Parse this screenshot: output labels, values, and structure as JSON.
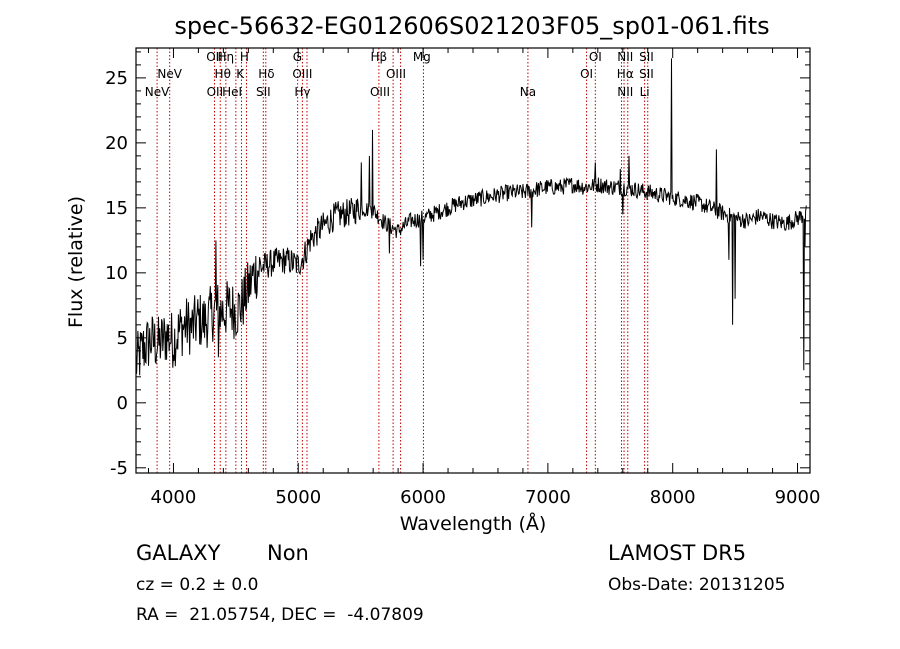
{
  "chart_data": {
    "type": "line",
    "title": "spec-56632-EG012606S021203F05_sp01-061.fits",
    "xlabel": "Wavelength (Å)",
    "ylabel": "Flux (relative)",
    "xlim": [
      3700,
      9100
    ],
    "ylim": [
      -5.4,
      27.3
    ],
    "xticks": [
      4000,
      5000,
      6000,
      7000,
      8000,
      9000
    ],
    "yticks": [
      -5,
      0,
      5,
      10,
      15,
      20,
      25
    ],
    "grid": false,
    "spectrum_anchors": [
      [
        3700,
        3.0
      ],
      [
        3760,
        4.2
      ],
      [
        3820,
        4.8
      ],
      [
        3880,
        4.5
      ],
      [
        3950,
        5.2
      ],
      [
        4000,
        4.8
      ],
      [
        4050,
        5.6
      ],
      [
        4100,
        6.0
      ],
      [
        4150,
        5.8
      ],
      [
        4200,
        6.4
      ],
      [
        4250,
        6.2
      ],
      [
        4300,
        6.8
      ],
      [
        4350,
        7.2
      ],
      [
        4400,
        7.0
      ],
      [
        4450,
        7.4
      ],
      [
        4500,
        7.0
      ],
      [
        4550,
        7.6
      ],
      [
        4600,
        8.8
      ],
      [
        4650,
        10.0
      ],
      [
        4700,
        10.4
      ],
      [
        4800,
        10.8
      ],
      [
        4900,
        11.0
      ],
      [
        5000,
        10.6
      ],
      [
        5050,
        11.4
      ],
      [
        5100,
        12.6
      ],
      [
        5200,
        13.6
      ],
      [
        5300,
        14.4
      ],
      [
        5400,
        14.6
      ],
      [
        5500,
        15.0
      ],
      [
        5600,
        14.8
      ],
      [
        5700,
        13.8
      ],
      [
        5800,
        13.2
      ],
      [
        5900,
        14.0
      ],
      [
        6000,
        14.2
      ],
      [
        6100,
        14.6
      ],
      [
        6200,
        15.0
      ],
      [
        6300,
        15.4
      ],
      [
        6400,
        15.6
      ],
      [
        6500,
        15.8
      ],
      [
        6600,
        16.0
      ],
      [
        6700,
        16.2
      ],
      [
        6800,
        16.2
      ],
      [
        6900,
        16.4
      ],
      [
        7000,
        16.6
      ],
      [
        7100,
        16.6
      ],
      [
        7200,
        16.8
      ],
      [
        7300,
        16.6
      ],
      [
        7400,
        16.8
      ],
      [
        7500,
        16.6
      ],
      [
        7600,
        16.6
      ],
      [
        7700,
        16.4
      ],
      [
        7800,
        16.2
      ],
      [
        7900,
        16.0
      ],
      [
        8000,
        15.8
      ],
      [
        8100,
        15.6
      ],
      [
        8200,
        15.4
      ],
      [
        8300,
        15.0
      ],
      [
        8400,
        14.6
      ],
      [
        8500,
        14.2
      ],
      [
        8600,
        14.0
      ],
      [
        8700,
        14.4
      ],
      [
        8800,
        14.0
      ],
      [
        8900,
        13.8
      ],
      [
        9000,
        14.2
      ],
      [
        9070,
        14.6
      ]
    ],
    "spectrum_features": [
      [
        4340,
        12.5
      ],
      [
        4360,
        3.5
      ],
      [
        5570,
        19.0
      ],
      [
        5595,
        21.0
      ],
      [
        5505,
        18.5
      ],
      [
        5730,
        11.5
      ],
      [
        5980,
        10.5
      ],
      [
        6000,
        11.0
      ],
      [
        6870,
        13.5
      ],
      [
        7380,
        18.5
      ],
      [
        7580,
        18.0
      ],
      [
        7600,
        14.5
      ],
      [
        7650,
        19.0
      ],
      [
        7990,
        26.5
      ],
      [
        8000,
        16.0
      ],
      [
        8350,
        19.5
      ],
      [
        8450,
        11.0
      ],
      [
        8480,
        6.0
      ],
      [
        8500,
        8.0
      ],
      [
        9050,
        2.5
      ],
      [
        9060,
        12.0
      ]
    ],
    "spectral_lines": [
      {
        "label": "NeV",
        "x": 3869,
        "row": 2
      },
      {
        "label": "NeV",
        "x": 3970,
        "row": 1
      },
      {
        "label": "OII",
        "x": 4329,
        "row": 0
      },
      {
        "label": "OII",
        "x": 4332,
        "row": 2
      },
      {
        "label": "Hη",
        "x": 4420,
        "row": 0
      },
      {
        "label": "Hθ",
        "x": 4395,
        "row": 1
      },
      {
        "label": "HeI",
        "x": 4470,
        "row": 2
      },
      {
        "label": "H",
        "x": 4568,
        "row": 0
      },
      {
        "label": "K",
        "x": 4535,
        "row": 1
      },
      {
        "label": "Hδ",
        "x": 4745,
        "row": 1
      },
      {
        "label": "SII",
        "x": 4720,
        "row": 2
      },
      {
        "label": "G",
        "x": 4993,
        "row": 0
      },
      {
        "label": "OIII",
        "x": 5033,
        "row": 1
      },
      {
        "label": "Hγ",
        "x": 5033,
        "row": 2
      },
      {
        "label": "Hβ",
        "x": 5646,
        "row": 0
      },
      {
        "label": "OIII",
        "x": 5783,
        "row": 1
      },
      {
        "label": "OIII",
        "x": 5655,
        "row": 2
      },
      {
        "label": "Mg",
        "x": 5990,
        "row": 0
      },
      {
        "label": "Na",
        "x": 6840,
        "row": 2
      },
      {
        "label": "OI",
        "x": 7380,
        "row": 0
      },
      {
        "label": "OI",
        "x": 7310,
        "row": 1
      },
      {
        "label": "NII",
        "x": 7620,
        "row": 0
      },
      {
        "label": "Hα",
        "x": 7620,
        "row": 1
      },
      {
        "label": "NII",
        "x": 7620,
        "row": 2
      },
      {
        "label": "SII",
        "x": 7790,
        "row": 0
      },
      {
        "label": "SII",
        "x": 7790,
        "row": 1
      },
      {
        "label": "Li",
        "x": 7775,
        "row": 2
      }
    ],
    "line_markers": [
      3869,
      3970,
      4329,
      4375,
      4420,
      4500,
      4545,
      4585,
      4720,
      4740,
      4995,
      5033,
      5070,
      5646,
      5760,
      5820,
      6003,
      6840,
      7310,
      7380,
      7590,
      7610,
      7640,
      7775,
      7800
    ],
    "colors": {
      "spectrum": "#000000",
      "markers": "#c00000",
      "frame": "#000000"
    }
  },
  "info": {
    "object_class": "GALAXY",
    "subclass": "Non",
    "cz": "cz = 0.2 ± 0.0",
    "coords": "RA =  21.05754, DEC =  -4.07809",
    "survey": "LAMOST DR5",
    "obs_date": "Obs-Date: 20131205"
  }
}
